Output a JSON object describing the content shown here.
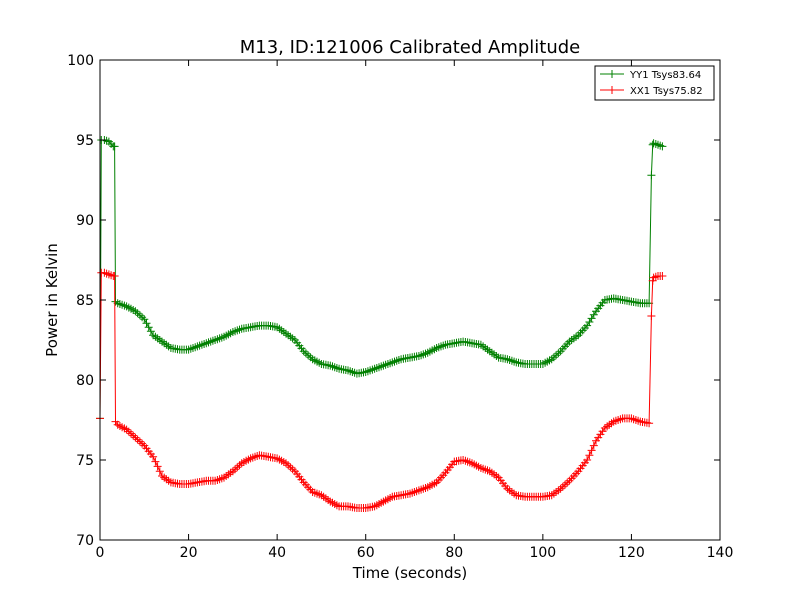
{
  "chart_data": {
    "type": "line",
    "title": "M13, ID:121006 Calibrated Amplitude",
    "xlabel": "Time (seconds)",
    "ylabel": "Power in Kelvin",
    "xlim": [
      0,
      140
    ],
    "ylim": [
      70,
      100
    ],
    "xticks": [
      0,
      20,
      40,
      60,
      80,
      100,
      120,
      140
    ],
    "yticks": [
      70,
      75,
      80,
      85,
      90,
      95,
      100
    ],
    "grid": false,
    "legend_position": "top-right",
    "series": [
      {
        "name": "YY1 Tsys83.64",
        "color": "#008000",
        "marker": "+",
        "x": [
          0,
          0.3,
          1,
          2,
          3,
          3.3,
          3.5,
          4,
          6,
          8,
          10,
          12,
          14,
          16,
          18,
          20,
          22,
          24,
          26,
          28,
          30,
          32,
          34,
          36,
          38,
          40,
          42,
          44,
          46,
          48,
          50,
          52,
          54,
          56,
          58,
          60,
          62,
          64,
          66,
          68,
          70,
          72,
          74,
          76,
          78,
          80,
          82,
          84,
          86,
          88,
          90,
          92,
          94,
          96,
          98,
          100,
          102,
          104,
          106,
          108,
          110,
          112,
          114,
          116,
          118,
          120,
          122,
          124,
          124.5,
          124.8,
          125,
          126,
          127
        ],
        "y": [
          77.6,
          95.0,
          95.0,
          94.9,
          94.6,
          94.6,
          84.9,
          84.8,
          84.6,
          84.3,
          83.8,
          82.8,
          82.4,
          82.0,
          81.9,
          81.9,
          82.1,
          82.3,
          82.5,
          82.7,
          83.0,
          83.2,
          83.3,
          83.4,
          83.4,
          83.3,
          82.9,
          82.5,
          81.8,
          81.3,
          81.0,
          80.9,
          80.7,
          80.6,
          80.4,
          80.5,
          80.7,
          80.9,
          81.1,
          81.3,
          81.4,
          81.5,
          81.7,
          82.0,
          82.2,
          82.3,
          82.4,
          82.3,
          82.2,
          81.8,
          81.4,
          81.3,
          81.1,
          81.0,
          81.0,
          81.0,
          81.3,
          81.8,
          82.4,
          82.8,
          83.4,
          84.3,
          85.0,
          85.1,
          85.0,
          84.9,
          84.8,
          84.8,
          92.8,
          94.7,
          94.8,
          94.7,
          94.6
        ]
      },
      {
        "name": "XX1 Tsys75.82",
        "color": "#ff0000",
        "marker": "+",
        "x": [
          0,
          0.3,
          1,
          2,
          3,
          3.3,
          3.5,
          4,
          6,
          8,
          10,
          12,
          14,
          16,
          18,
          20,
          22,
          24,
          26,
          28,
          30,
          32,
          34,
          36,
          38,
          40,
          42,
          44,
          46,
          48,
          50,
          52,
          54,
          56,
          58,
          60,
          62,
          64,
          66,
          68,
          70,
          72,
          74,
          76,
          78,
          80,
          82,
          84,
          86,
          88,
          90,
          92,
          94,
          96,
          98,
          100,
          102,
          104,
          106,
          108,
          110,
          112,
          114,
          116,
          118,
          120,
          122,
          124,
          124.5,
          124.8,
          125,
          126,
          127
        ],
        "y": [
          77.6,
          86.7,
          86.7,
          86.6,
          86.5,
          86.5,
          77.4,
          77.2,
          76.9,
          76.4,
          75.9,
          75.2,
          74.0,
          73.6,
          73.5,
          73.5,
          73.6,
          73.7,
          73.7,
          73.9,
          74.3,
          74.8,
          75.1,
          75.3,
          75.2,
          75.1,
          74.8,
          74.3,
          73.6,
          73.0,
          72.8,
          72.4,
          72.1,
          72.1,
          72.0,
          72.0,
          72.1,
          72.4,
          72.7,
          72.8,
          72.9,
          73.1,
          73.3,
          73.6,
          74.2,
          74.9,
          75.0,
          74.8,
          74.5,
          74.3,
          73.9,
          73.2,
          72.8,
          72.7,
          72.7,
          72.7,
          72.8,
          73.2,
          73.7,
          74.3,
          75.0,
          76.2,
          77.0,
          77.4,
          77.6,
          77.6,
          77.4,
          77.3,
          84.0,
          86.2,
          86.4,
          86.5,
          86.5
        ]
      }
    ]
  }
}
